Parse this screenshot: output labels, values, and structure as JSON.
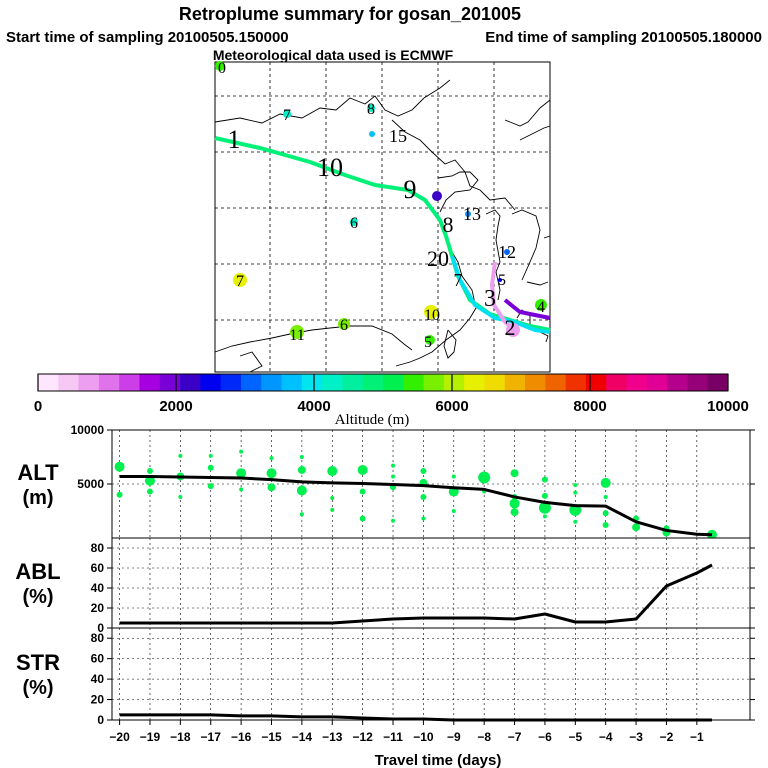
{
  "header": {
    "title": "Retroplume summary for gosan_201005",
    "start": "Start time of sampling 20100505.150000",
    "end": "End time of sampling 20100505.180000",
    "met": "Meteorological data used is ECMWF"
  },
  "colorbar": {
    "label": "Altitude (m)",
    "min": 0,
    "max": 10000,
    "tick_labels": [
      "0",
      "2000",
      "4000",
      "6000",
      "8000",
      "10000"
    ],
    "colors": [
      "#ffe6ff",
      "#f6c8f4",
      "#ee9ef0",
      "#e072ec",
      "#cc3fe8",
      "#a600e0",
      "#7a00d8",
      "#3a00c8",
      "#0000f0",
      "#0028f8",
      "#0064ff",
      "#0096ff",
      "#00c0ff",
      "#00e6f0",
      "#00f0c8",
      "#00f0a0",
      "#00f078",
      "#00f050",
      "#32f000",
      "#78f000",
      "#b4f000",
      "#e6f000",
      "#f0dc00",
      "#f0b400",
      "#f08c00",
      "#f06400",
      "#f03200",
      "#f00000",
      "#f00064",
      "#f0008c",
      "#e00096",
      "#b4008c",
      "#960078",
      "#780064"
    ]
  },
  "map_labels": [
    {
      "text": "1",
      "color": "#00f078"
    },
    {
      "text": "10",
      "color": "#00f078"
    },
    {
      "text": "9",
      "color": "#00f0a0"
    },
    {
      "text": "8",
      "color": "#00f0c8"
    },
    {
      "text": "20",
      "color": "#00f0c8"
    },
    {
      "text": "7",
      "color": "#00e6f0"
    },
    {
      "text": "15",
      "color": "#00c0ff"
    },
    {
      "text": "13",
      "color": "#0096ff"
    },
    {
      "text": "12",
      "color": "#0064ff"
    },
    {
      "text": "7",
      "color": "#00f0c8"
    },
    {
      "text": "8",
      "color": "#00f0c8"
    },
    {
      "text": "6",
      "color": "#00f0c8"
    },
    {
      "text": "7",
      "color": "#e6f000"
    },
    {
      "text": "11",
      "color": "#78f000"
    },
    {
      "text": "6",
      "color": "#78f000"
    },
    {
      "text": "10",
      "color": "#e6f000"
    },
    {
      "text": "5",
      "color": "#32f000"
    },
    {
      "text": "5",
      "color": "#0000f0"
    },
    {
      "text": "4",
      "color": "#32f000"
    },
    {
      "text": "3",
      "color": "#cc3fe8"
    },
    {
      "text": "2",
      "color": "#cc3fe8"
    },
    {
      "text": "0",
      "color": "#32f000"
    }
  ],
  "chart_data": [
    {
      "type": "line",
      "panel": "ALT",
      "title": "ALT",
      "ylabel": "(m)",
      "ylim": [
        0,
        10000
      ],
      "yticks": [
        "5000",
        "10000"
      ],
      "x": [
        -20,
        -19,
        -18,
        -17,
        -16,
        -15,
        -14,
        -13,
        -12,
        -11,
        -10,
        -9,
        -8,
        -7,
        -6,
        -5,
        -4,
        -3,
        -2,
        -1,
        -0.5
      ],
      "values": [
        5700,
        5700,
        5650,
        5600,
        5550,
        5400,
        5200,
        5100,
        5050,
        4950,
        4850,
        4650,
        4500,
        3800,
        3300,
        3000,
        2950,
        1500,
        700,
        350,
        300
      ],
      "scatter": [
        {
          "x": -20,
          "y": 6600,
          "s": 5
        },
        {
          "x": -20,
          "y": 4000,
          "s": 3
        },
        {
          "x": -19,
          "y": 6200,
          "s": 3
        },
        {
          "x": -19,
          "y": 5300,
          "s": 5
        },
        {
          "x": -19,
          "y": 4300,
          "s": 3
        },
        {
          "x": -18,
          "y": 7600,
          "s": 2
        },
        {
          "x": -18,
          "y": 5700,
          "s": 4
        },
        {
          "x": -18,
          "y": 3800,
          "s": 2
        },
        {
          "x": -17,
          "y": 7600,
          "s": 2
        },
        {
          "x": -17,
          "y": 6500,
          "s": 3
        },
        {
          "x": -17,
          "y": 4800,
          "s": 3
        },
        {
          "x": -16,
          "y": 8000,
          "s": 2
        },
        {
          "x": -16,
          "y": 6000,
          "s": 5
        },
        {
          "x": -16,
          "y": 4500,
          "s": 2
        },
        {
          "x": -15,
          "y": 7400,
          "s": 2
        },
        {
          "x": -15,
          "y": 6000,
          "s": 5
        },
        {
          "x": -15,
          "y": 4700,
          "s": 4
        },
        {
          "x": -14,
          "y": 7500,
          "s": 2
        },
        {
          "x": -14,
          "y": 6300,
          "s": 4
        },
        {
          "x": -14,
          "y": 4400,
          "s": 5
        },
        {
          "x": -14,
          "y": 2200,
          "s": 2
        },
        {
          "x": -13,
          "y": 6200,
          "s": 5
        },
        {
          "x": -13,
          "y": 3700,
          "s": 2
        },
        {
          "x": -13,
          "y": 2600,
          "s": 2
        },
        {
          "x": -12,
          "y": 6300,
          "s": 5
        },
        {
          "x": -12,
          "y": 4300,
          "s": 3
        },
        {
          "x": -12,
          "y": 1800,
          "s": 3
        },
        {
          "x": -11,
          "y": 6700,
          "s": 2
        },
        {
          "x": -11,
          "y": 5700,
          "s": 2
        },
        {
          "x": -11,
          "y": 4700,
          "s": 3
        },
        {
          "x": -11,
          "y": 1600,
          "s": 2
        },
        {
          "x": -10,
          "y": 6200,
          "s": 3
        },
        {
          "x": -10,
          "y": 5100,
          "s": 4
        },
        {
          "x": -10,
          "y": 3800,
          "s": 3
        },
        {
          "x": -10,
          "y": 1800,
          "s": 2
        },
        {
          "x": -9,
          "y": 5700,
          "s": 2
        },
        {
          "x": -9,
          "y": 4300,
          "s": 5
        },
        {
          "x": -9,
          "y": 2500,
          "s": 2
        },
        {
          "x": -8,
          "y": 5600,
          "s": 6
        },
        {
          "x": -8,
          "y": 4300,
          "s": 2
        },
        {
          "x": -7,
          "y": 6000,
          "s": 4
        },
        {
          "x": -7,
          "y": 3800,
          "s": 3
        },
        {
          "x": -7,
          "y": 3200,
          "s": 5
        },
        {
          "x": -7,
          "y": 2400,
          "s": 4
        },
        {
          "x": -6,
          "y": 5400,
          "s": 3
        },
        {
          "x": -6,
          "y": 3900,
          "s": 3
        },
        {
          "x": -6,
          "y": 2800,
          "s": 6
        },
        {
          "x": -6,
          "y": 2000,
          "s": 2
        },
        {
          "x": -5,
          "y": 4900,
          "s": 2
        },
        {
          "x": -5,
          "y": 4200,
          "s": 2
        },
        {
          "x": -5,
          "y": 2600,
          "s": 6
        },
        {
          "x": -5,
          "y": 1500,
          "s": 2
        },
        {
          "x": -4,
          "y": 5100,
          "s": 5
        },
        {
          "x": -4,
          "y": 3800,
          "s": 2
        },
        {
          "x": -4,
          "y": 2300,
          "s": 3
        },
        {
          "x": -4,
          "y": 1200,
          "s": 3
        },
        {
          "x": -3,
          "y": 1800,
          "s": 3
        },
        {
          "x": -3,
          "y": 1000,
          "s": 4
        },
        {
          "x": -2,
          "y": 900,
          "s": 3
        },
        {
          "x": -2,
          "y": 500,
          "s": 4
        },
        {
          "x": -0.5,
          "y": 300,
          "s": 5
        }
      ],
      "scatter_color": "#00f050"
    },
    {
      "type": "line",
      "panel": "ABL",
      "title": "ABL",
      "ylabel": "(%)",
      "ylim": [
        0,
        90
      ],
      "yticks": [
        "0",
        "20",
        "40",
        "60",
        "80"
      ],
      "x": [
        -20,
        -19,
        -18,
        -17,
        -16,
        -15,
        -14,
        -13,
        -12,
        -11,
        -10,
        -9,
        -8,
        -7,
        -6,
        -5,
        -4,
        -3,
        -2,
        -1,
        -0.5
      ],
      "values": [
        5,
        5,
        5,
        5,
        5,
        5,
        5,
        5,
        7,
        9,
        10,
        10,
        10,
        9,
        14,
        6,
        6,
        9,
        42,
        55,
        63
      ]
    },
    {
      "type": "line",
      "panel": "STR",
      "title": "STR",
      "ylabel": "(%)",
      "ylim": [
        0,
        90
      ],
      "yticks": [
        "0",
        "20",
        "40",
        "60",
        "80"
      ],
      "x": [
        -20,
        -19,
        -18,
        -17,
        -16,
        -15,
        -14,
        -13,
        -12,
        -11,
        -10,
        -9,
        -8,
        -7,
        -6,
        -5,
        -4,
        -3,
        -2,
        -1,
        -0.5
      ],
      "values": [
        5,
        5,
        5,
        5,
        4,
        4,
        3,
        3,
        2,
        1,
        1,
        0,
        0,
        0,
        0,
        0,
        0,
        0,
        0,
        0,
        0
      ]
    }
  ],
  "xaxis": {
    "label": "Travel time (days)",
    "tick_labels": [
      "−20",
      "−19",
      "−18",
      "−17",
      "−16",
      "−15",
      "−14",
      "−13",
      "−12",
      "−11",
      "−10",
      "−9",
      "−8",
      "−7",
      "−6",
      "−5",
      "−4",
      "−3",
      "−2",
      "−1"
    ]
  }
}
